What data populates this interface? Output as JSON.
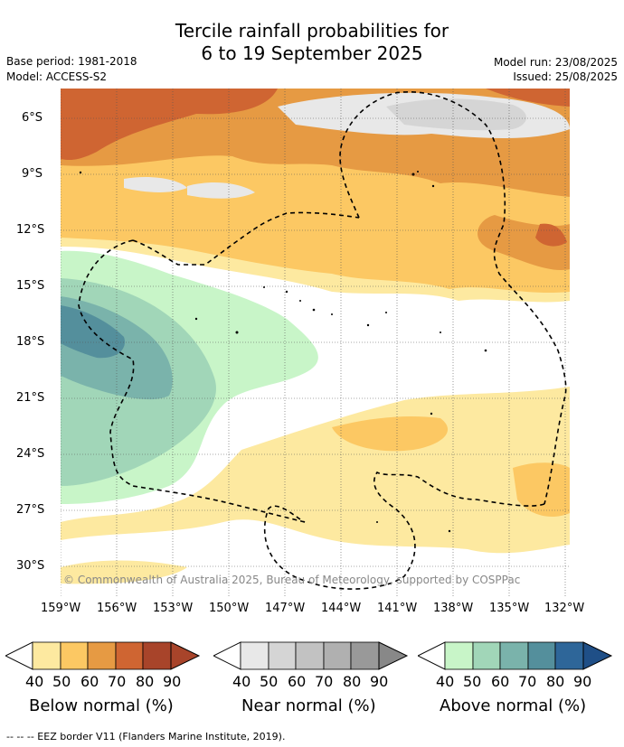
{
  "title": {
    "line1": "Tercile rainfall probabilities for",
    "line2": "6 to 19 September 2025"
  },
  "meta": {
    "base_period": "Base period: 1981-2018",
    "model": "Model: ACCESS-S2",
    "model_run": "Model run: 23/08/2025",
    "issued": "Issued: 25/08/2025"
  },
  "map": {
    "copyright": "© Commonwealth of Australia 2025, Bureau of Meteorology, supported by COSPPac",
    "lat_ticks": [
      "6°S",
      "9°S",
      "12°S",
      "15°S",
      "18°S",
      "21°S",
      "24°S",
      "27°S",
      "30°S"
    ],
    "lon_ticks": [
      "159°W",
      "156°W",
      "153°W",
      "150°W",
      "147°W",
      "144°W",
      "141°W",
      "138°W",
      "135°W",
      "132°W"
    ],
    "colors": {
      "below": [
        "#fde9a0",
        "#fcc863",
        "#e69a43",
        "#cf6532",
        "#a8442a"
      ],
      "near": [
        "#e8e8e8",
        "#d5d5d5",
        "#c2c2c2",
        "#b0b0b0",
        "#999999"
      ],
      "above": [
        "#c8f5c8",
        "#a1d6b8",
        "#7ab3ab",
        "#548f9c",
        "#2e6699",
        "#1f4f87"
      ]
    }
  },
  "colorbars": [
    {
      "title": "Below normal (%)",
      "ticks": [
        "40",
        "50",
        "60",
        "70",
        "80",
        "90"
      ]
    },
    {
      "title": "Near normal (%)",
      "ticks": [
        "40",
        "50",
        "60",
        "70",
        "80",
        "90"
      ]
    },
    {
      "title": "Above normal (%)",
      "ticks": [
        "40",
        "50",
        "60",
        "70",
        "80",
        "90"
      ]
    }
  ],
  "footer": "--  --  -- EEZ border V11 (Flanders Marine Institute, 2019)."
}
